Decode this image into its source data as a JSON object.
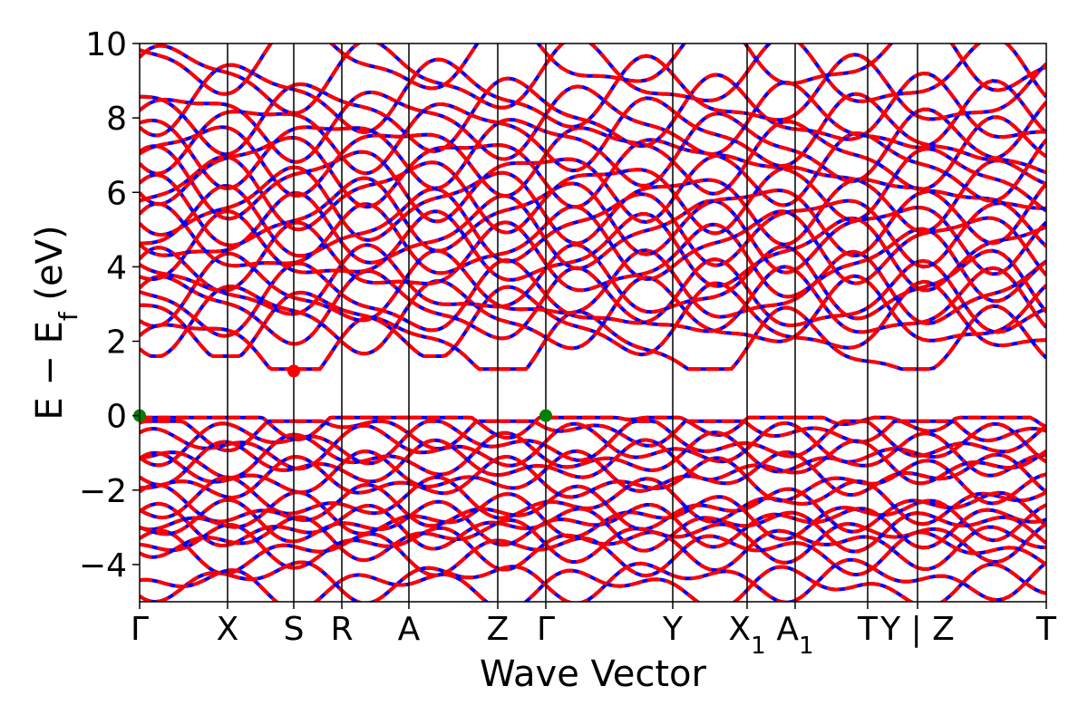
{
  "chart_data": {
    "type": "line",
    "title": "",
    "xlabel": "Wave Vector",
    "ylabel": "E − E",
    "ylabel_subscript": "f",
    "ylabel_unit": " (eV)",
    "ylim": [
      -5,
      10
    ],
    "yticks": [
      {
        "value": -4,
        "label": "−4"
      },
      {
        "value": -2,
        "label": "−2"
      },
      {
        "value": 0,
        "label": "0"
      },
      {
        "value": 2,
        "label": "2"
      },
      {
        "value": 4,
        "label": "4"
      },
      {
        "value": 6,
        "label": "6"
      },
      {
        "value": 8,
        "label": "8"
      },
      {
        "value": 10,
        "label": "10"
      }
    ],
    "xlim": [
      0,
      1
    ],
    "kpoints": [
      {
        "pos": 0.0,
        "label": "Γ",
        "sub": ""
      },
      {
        "pos": 0.097,
        "label": "X",
        "sub": ""
      },
      {
        "pos": 0.17,
        "label": "S",
        "sub": ""
      },
      {
        "pos": 0.223,
        "label": "R",
        "sub": ""
      },
      {
        "pos": 0.297,
        "label": "A",
        "sub": ""
      },
      {
        "pos": 0.395,
        "label": "Z",
        "sub": ""
      },
      {
        "pos": 0.448,
        "label": "Γ",
        "sub": ""
      },
      {
        "pos": 0.588,
        "label": "Y",
        "sub": ""
      },
      {
        "pos": 0.67,
        "label": "X",
        "sub": "1"
      },
      {
        "pos": 0.723,
        "label": "A",
        "sub": "1"
      },
      {
        "pos": 0.803,
        "label": "T",
        "sub": ""
      },
      {
        "pos": 0.858,
        "label": "Y | Z",
        "sub": ""
      },
      {
        "pos": 1.0,
        "label": "T",
        "sub": ""
      }
    ],
    "break_after_index": 10,
    "series_colors": {
      "spin_up": "#ff0000",
      "spin_down": "#0000ff"
    },
    "marker_color_vbm": "#008000",
    "marker_color_cbm": "#ff0000",
    "band_edges": {
      "vbm": [
        {
          "x": 0.0,
          "y": 0.0
        },
        {
          "x": 0.448,
          "y": 0.0
        }
      ],
      "cbm": [
        {
          "x": 0.17,
          "y": 1.2
        }
      ]
    },
    "conduction_bands_start": [
      1.85,
      2.5,
      2.65,
      2.9,
      3.1,
      3.35,
      3.5,
      4.1,
      4.4,
      4.6,
      4.9,
      5.1,
      5.4,
      5.7,
      6.0,
      6.3,
      6.7,
      7.0,
      7.2,
      7.6,
      7.9,
      8.1,
      8.6,
      9.1,
      9.6
    ],
    "valence_bands_start": [
      0.0,
      -0.3,
      -0.7,
      -0.85,
      -1.1,
      -1.3,
      -1.6,
      -1.75,
      -2.3,
      -2.5,
      -2.7,
      -2.9,
      -3.0,
      -3.3,
      -3.5,
      -3.65,
      -4.4,
      -4.6
    ]
  }
}
